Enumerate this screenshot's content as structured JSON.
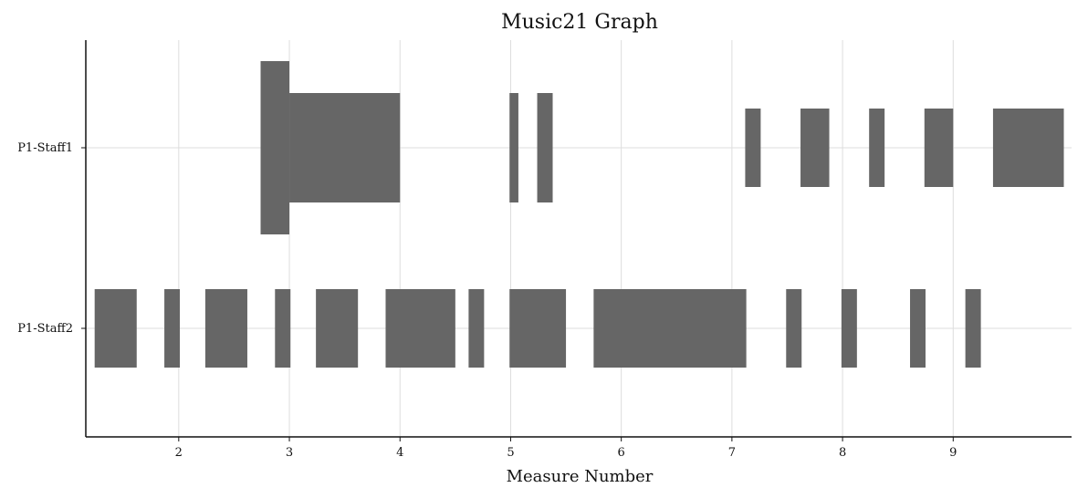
{
  "chart_data": {
    "type": "bar",
    "subtype": "horizontal-bar-segments",
    "title": "Music21 Graph",
    "xlabel": "Measure Number",
    "ylabel": "",
    "xlim": [
      1.16,
      10.07
    ],
    "xticks": [
      2,
      3,
      4,
      5,
      6,
      7,
      8,
      9
    ],
    "grid": true,
    "bar_color": "#666666",
    "grid_color": "#dddddd",
    "series": [
      {
        "name": "P1-Staff1",
        "segments": [
          {
            "start": 2.74,
            "end": 3.0,
            "height": 0.95
          },
          {
            "start": 3.0,
            "end": 4.0,
            "height": 0.6
          },
          {
            "start": 4.99,
            "end": 5.07,
            "height": 0.6
          },
          {
            "start": 5.24,
            "end": 5.38,
            "height": 0.6
          },
          {
            "start": 7.12,
            "end": 7.26,
            "height": 0.43
          },
          {
            "start": 7.62,
            "end": 7.88,
            "height": 0.43
          },
          {
            "start": 8.24,
            "end": 8.38,
            "height": 0.43
          },
          {
            "start": 8.74,
            "end": 9.0,
            "height": 0.43
          },
          {
            "start": 9.36,
            "end": 10.0,
            "height": 0.43
          }
        ]
      },
      {
        "name": "P1-Staff2",
        "segments": [
          {
            "start": 1.24,
            "end": 1.62,
            "height": 0.43
          },
          {
            "start": 1.87,
            "end": 2.01,
            "height": 0.43
          },
          {
            "start": 2.24,
            "end": 2.62,
            "height": 0.43
          },
          {
            "start": 2.87,
            "end": 3.01,
            "height": 0.43
          },
          {
            "start": 3.24,
            "end": 3.62,
            "height": 0.43
          },
          {
            "start": 3.87,
            "end": 4.5,
            "height": 0.43
          },
          {
            "start": 4.62,
            "end": 4.76,
            "height": 0.43
          },
          {
            "start": 4.99,
            "end": 5.5,
            "height": 0.43
          },
          {
            "start": 5.75,
            "end": 7.13,
            "height": 0.43
          },
          {
            "start": 7.49,
            "end": 7.63,
            "height": 0.43
          },
          {
            "start": 7.99,
            "end": 8.13,
            "height": 0.43
          },
          {
            "start": 8.61,
            "end": 8.75,
            "height": 0.43
          },
          {
            "start": 9.11,
            "end": 9.25,
            "height": 0.43
          }
        ]
      }
    ]
  }
}
